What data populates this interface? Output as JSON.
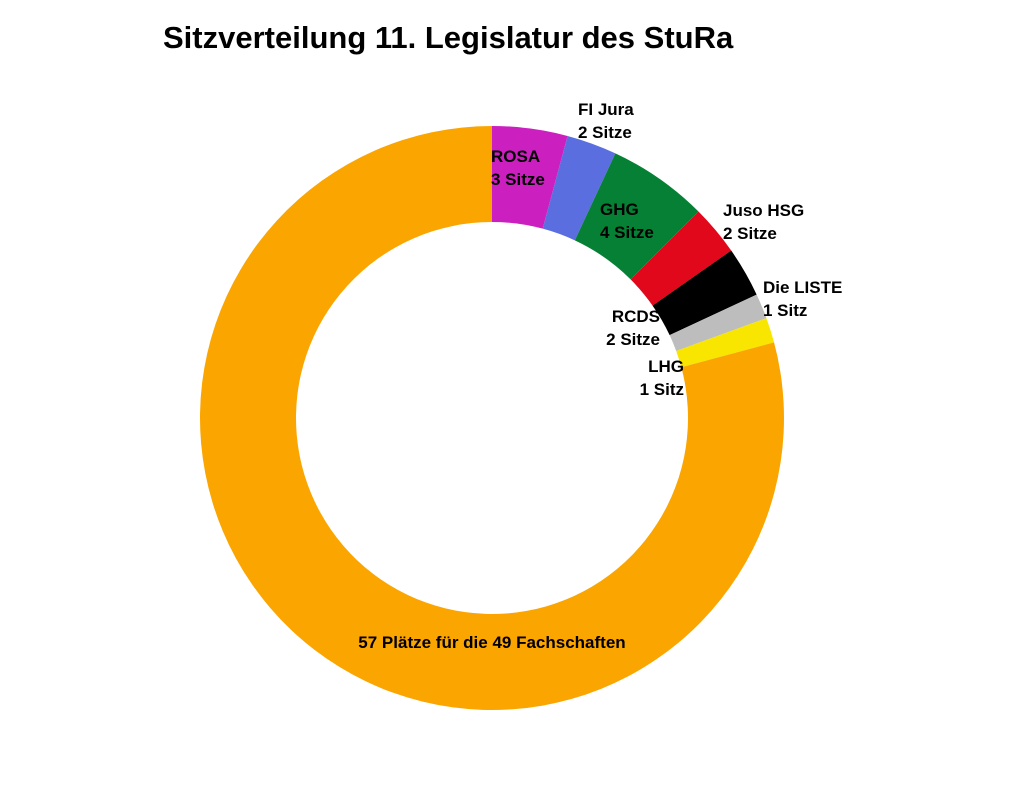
{
  "chart_data": {
    "type": "pie",
    "title": "Sitzverteilung 11. Legislatur des StuRa",
    "donut": true,
    "start": "top",
    "direction": "clockwise",
    "slices": [
      {
        "name": "ROSA",
        "value": 3,
        "label": [
          "ROSA",
          "3 Sitze"
        ],
        "color": "#cc1fbf"
      },
      {
        "name": "FI Jura",
        "value": 2,
        "label": [
          "FI Jura",
          "2 Sitze"
        ],
        "color": "#5a6ee0"
      },
      {
        "name": "GHG",
        "value": 4,
        "label": [
          "GHG",
          "4 Sitze"
        ],
        "color": "#058034"
      },
      {
        "name": "Juso HSG",
        "value": 2,
        "label": [
          "Juso HSG",
          "2 Sitze"
        ],
        "color": "#e1081b"
      },
      {
        "name": "RCDS",
        "value": 2,
        "label": [
          "RCDS",
          "2 Sitze"
        ],
        "color": "#000000"
      },
      {
        "name": "Die LISTE",
        "value": 1,
        "label": [
          "Die LISTE",
          "1 Sitz"
        ],
        "color": "#bdbdbd"
      },
      {
        "name": "LHG",
        "value": 1,
        "label": [
          "LHG",
          "1 Sitz"
        ],
        "color": "#f8e600"
      },
      {
        "name": "Fachschaften",
        "value": 57,
        "label": [
          "57 Plätze für die 49 Fachschaften"
        ],
        "color": "#fba500"
      }
    ]
  }
}
